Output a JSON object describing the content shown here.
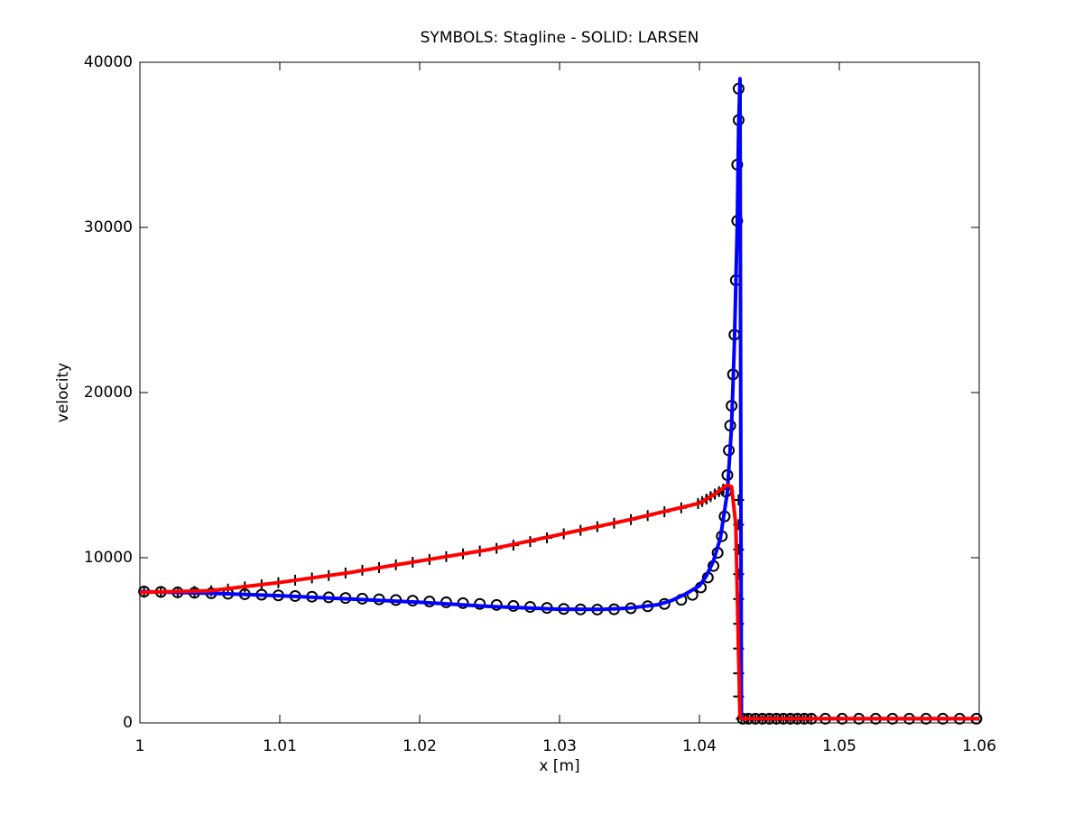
{
  "chart_data": {
    "type": "line",
    "title": "SYMBOLS: Stagline - SOLID: LARSEN",
    "x_label": "x [m]",
    "y_label": "velocity",
    "xlim": [
      1,
      1.06
    ],
    "ylim": [
      0,
      40000
    ],
    "xticks": [
      1,
      1.01,
      1.02,
      1.03,
      1.04,
      1.05,
      1.06
    ],
    "yticks": [
      0,
      10000,
      20000,
      30000,
      40000
    ],
    "grid": false,
    "series": [
      {
        "color": "#000000",
        "marker": "o",
        "line": false,
        "x": [
          1.0003,
          1.0015,
          1.0027,
          1.0039,
          1.0051,
          1.0063,
          1.0075,
          1.0087,
          1.0099,
          1.0111,
          1.0123,
          1.0135,
          1.0147,
          1.0159,
          1.0171,
          1.0183,
          1.0195,
          1.0207,
          1.0219,
          1.0231,
          1.0243,
          1.0255,
          1.0267,
          1.0279,
          1.0291,
          1.0303,
          1.0315,
          1.0327,
          1.0339,
          1.0351,
          1.0363,
          1.0375,
          1.0387,
          1.0395,
          1.0401,
          1.0406,
          1.041,
          1.0413,
          1.0416,
          1.0418,
          1.0419,
          1.042,
          1.0421,
          1.0422,
          1.0423,
          1.0424,
          1.0425,
          1.0426,
          1.0427,
          1.0427,
          1.0428,
          1.0428,
          1.0431,
          1.0435,
          1.044,
          1.0445,
          1.045,
          1.0455,
          1.046,
          1.0465,
          1.047,
          1.0475,
          1.048,
          1.049,
          1.0502,
          1.0514,
          1.0526,
          1.0538,
          1.055,
          1.0562,
          1.0574,
          1.0586,
          1.0598
        ],
        "values": [
          7950,
          7930,
          7900,
          7880,
          7850,
          7820,
          7790,
          7760,
          7720,
          7680,
          7640,
          7600,
          7560,
          7520,
          7480,
          7440,
          7400,
          7350,
          7300,
          7250,
          7200,
          7140,
          7080,
          7020,
          6960,
          6900,
          6870,
          6860,
          6880,
          6940,
          7060,
          7200,
          7450,
          7750,
          8200,
          8800,
          9500,
          10300,
          11300,
          12500,
          14000,
          15000,
          16500,
          18000,
          19200,
          21100,
          23500,
          26800,
          30400,
          33800,
          36500,
          38400,
          250,
          250,
          250,
          250,
          250,
          250,
          250,
          250,
          250,
          250,
          250,
          250,
          250,
          250,
          250,
          250,
          250,
          250,
          250,
          250,
          250
        ]
      },
      {
        "color": "#000000",
        "marker": "+",
        "line": false,
        "x": [
          1.0003,
          1.0015,
          1.0027,
          1.0039,
          1.0051,
          1.0063,
          1.0075,
          1.0087,
          1.0099,
          1.0111,
          1.0123,
          1.0135,
          1.0147,
          1.0159,
          1.0171,
          1.0183,
          1.0195,
          1.0207,
          1.0219,
          1.0231,
          1.0243,
          1.0255,
          1.0267,
          1.0279,
          1.0291,
          1.0303,
          1.0315,
          1.0327,
          1.0339,
          1.0351,
          1.0363,
          1.0375,
          1.0387,
          1.0399,
          1.0402,
          1.0405,
          1.0408,
          1.0411,
          1.0414,
          1.0417,
          1.042,
          1.0428,
          1.0428,
          1.0428,
          1.0428,
          1.0428,
          1.0428,
          1.0428,
          1.0428,
          1.0428,
          1.043,
          1.0435,
          1.044,
          1.0445,
          1.045,
          1.0455,
          1.046,
          1.0465,
          1.047,
          1.0475,
          1.048
        ],
        "values": [
          7900,
          7910,
          7930,
          7960,
          8000,
          8100,
          8230,
          8360,
          8490,
          8640,
          8780,
          8920,
          9070,
          9240,
          9400,
          9570,
          9730,
          9900,
          10070,
          10230,
          10400,
          10570,
          10760,
          10980,
          11200,
          11450,
          11660,
          11880,
          12090,
          12310,
          12550,
          12780,
          13020,
          13280,
          13400,
          13550,
          13700,
          13850,
          14000,
          14150,
          14300,
          13500,
          12000,
          10500,
          9000,
          7500,
          6000,
          4500,
          3000,
          1600,
          250,
          250,
          250,
          250,
          250,
          250,
          250,
          250,
          250,
          250,
          250
        ]
      },
      {
        "color": "#0000ff",
        "marker": "none",
        "line": true,
        "x": [
          1,
          1.005,
          1.01,
          1.015,
          1.02,
          1.025,
          1.03,
          1.033,
          1.035,
          1.037,
          1.038,
          1.039,
          1.04,
          1.0405,
          1.041,
          1.0415,
          1.042,
          1.0423,
          1.0425,
          1.0427,
          1.0428,
          1.0429,
          1.043,
          1.06
        ],
        "values": [
          7950,
          7850,
          7700,
          7500,
          7300,
          7050,
          6880,
          6870,
          6950,
          7150,
          7400,
          7800,
          8300,
          8900,
          9800,
          11200,
          14000,
          18000,
          23000,
          30000,
          36000,
          39000,
          250,
          250
        ]
      },
      {
        "color": "#ff0000",
        "marker": "none",
        "line": true,
        "x": [
          1,
          1.005,
          1.01,
          1.015,
          1.02,
          1.025,
          1.03,
          1.035,
          1.04,
          1.041,
          1.042,
          1.0423,
          1.0426,
          1.0428,
          1.0429,
          1.043,
          1.06
        ],
        "values": [
          7900,
          8000,
          8500,
          9100,
          9800,
          10500,
          11400,
          12300,
          13300,
          13800,
          14400,
          14300,
          12000,
          4000,
          400,
          250,
          250
        ]
      }
    ]
  }
}
